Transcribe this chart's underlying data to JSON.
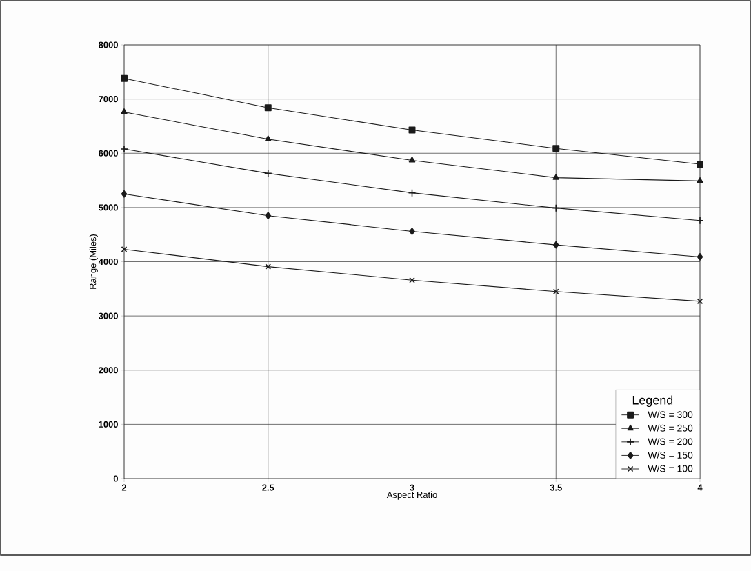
{
  "chart_data": {
    "type": "line",
    "xlabel": "Aspect Ratio",
    "ylabel": "Range (Miles)",
    "legend_title": "Legend",
    "x": [
      2,
      2.5,
      3,
      3.5,
      4
    ],
    "series": [
      {
        "name": "W/S = 300",
        "color": "#1a1a1a",
        "marker": "square",
        "values": [
          7380,
          6840,
          6430,
          6090,
          5800
        ]
      },
      {
        "name": "W/S = 250",
        "color": "#1a1a1a",
        "marker": "triangle",
        "values": [
          6760,
          6260,
          5870,
          5550,
          5490
        ]
      },
      {
        "name": "W/S = 200",
        "color": "#1a1a1a",
        "marker": "plus",
        "values": [
          6080,
          5630,
          5270,
          4990,
          4760
        ]
      },
      {
        "name": "W/S = 150",
        "color": "#1a1a1a",
        "marker": "diamond",
        "values": [
          5250,
          4850,
          4560,
          4310,
          4090
        ]
      },
      {
        "name": "W/S = 100",
        "color": "#1a1a1a",
        "marker": "cross",
        "values": [
          4230,
          3910,
          3660,
          3450,
          3270
        ]
      }
    ],
    "xlim": [
      2,
      4
    ],
    "ylim": [
      0,
      8000
    ],
    "xticks": [
      2,
      2.5,
      3,
      3.5,
      4
    ],
    "yticks": [
      0,
      1000,
      2000,
      3000,
      4000,
      5000,
      6000,
      7000,
      8000
    ],
    "grid": true,
    "legend": "bottom right",
    "line_style": "solid"
  }
}
